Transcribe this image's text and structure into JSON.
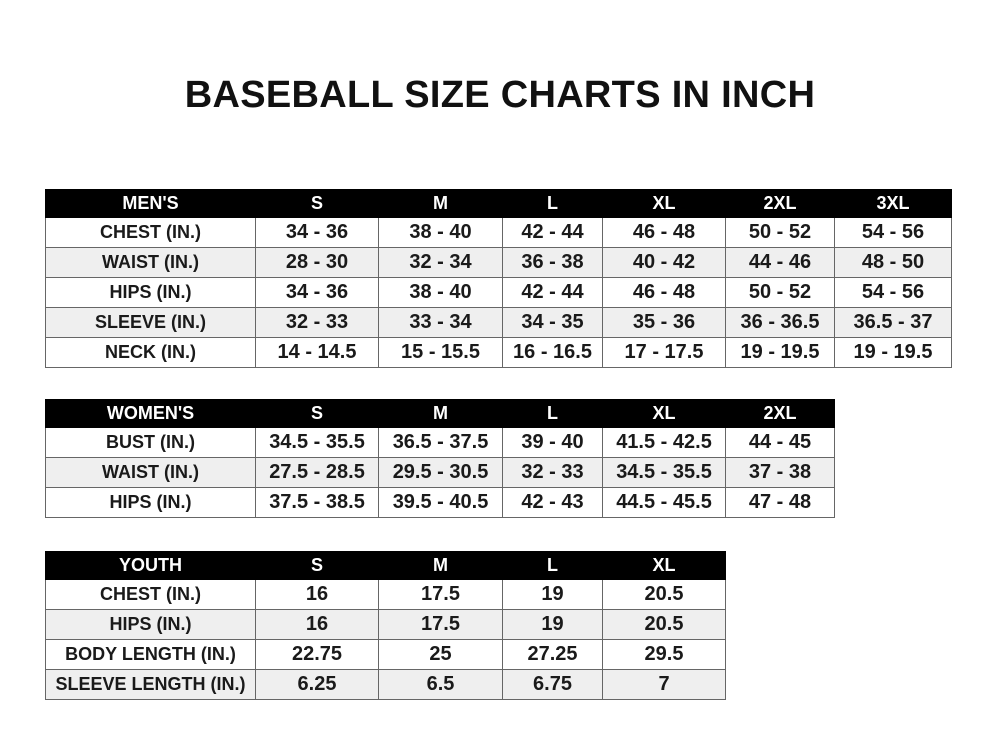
{
  "title": "BASEBALL SIZE CHARTS IN INCH",
  "men": {
    "header": [
      "MEN'S",
      "S",
      "M",
      "L",
      "XL",
      "2XL",
      "3XL"
    ],
    "rows": [
      [
        "CHEST (IN.)",
        "34 - 36",
        "38 - 40",
        "42 - 44",
        "46 - 48",
        "50 - 52",
        "54 - 56"
      ],
      [
        "WAIST (IN.)",
        "28 - 30",
        "32 - 34",
        "36 - 38",
        "40 - 42",
        "44 - 46",
        "48 - 50"
      ],
      [
        "HIPS (IN.)",
        "34 - 36",
        "38 - 40",
        "42 - 44",
        "46 - 48",
        "50 - 52",
        "54 - 56"
      ],
      [
        "SLEEVE (IN.)",
        "32 - 33",
        "33 - 34",
        "34 - 35",
        "35 - 36",
        "36 - 36.5",
        "36.5 - 37"
      ],
      [
        "NECK (IN.)",
        "14 - 14.5",
        "15 - 15.5",
        "16 - 16.5",
        "17 - 17.5",
        "19 - 19.5",
        "19 - 19.5"
      ]
    ]
  },
  "women": {
    "header": [
      "WOMEN'S",
      "S",
      "M",
      "L",
      "XL",
      "2XL"
    ],
    "rows": [
      [
        "BUST (IN.)",
        "34.5 - 35.5",
        "36.5 - 37.5",
        "39 - 40",
        "41.5 - 42.5",
        "44 - 45"
      ],
      [
        "WAIST (IN.)",
        "27.5 - 28.5",
        "29.5 - 30.5",
        "32 - 33",
        "34.5 - 35.5",
        "37 - 38"
      ],
      [
        "HIPS (IN.)",
        "37.5 - 38.5",
        "39.5 - 40.5",
        "42 - 43",
        "44.5 - 45.5",
        "47 - 48"
      ]
    ]
  },
  "youth": {
    "header": [
      "YOUTH",
      "S",
      "M",
      "L",
      "XL"
    ],
    "rows": [
      [
        "CHEST (IN.)",
        "16",
        "17.5",
        "19",
        "20.5"
      ],
      [
        "HIPS (IN.)",
        "16",
        "17.5",
        "19",
        "20.5"
      ],
      [
        "BODY LENGTH (IN.)",
        "22.75",
        "25",
        "27.25",
        "29.5"
      ],
      [
        "SLEEVE LENGTH (IN.)",
        "6.25",
        "6.5",
        "6.75",
        "7"
      ]
    ]
  }
}
